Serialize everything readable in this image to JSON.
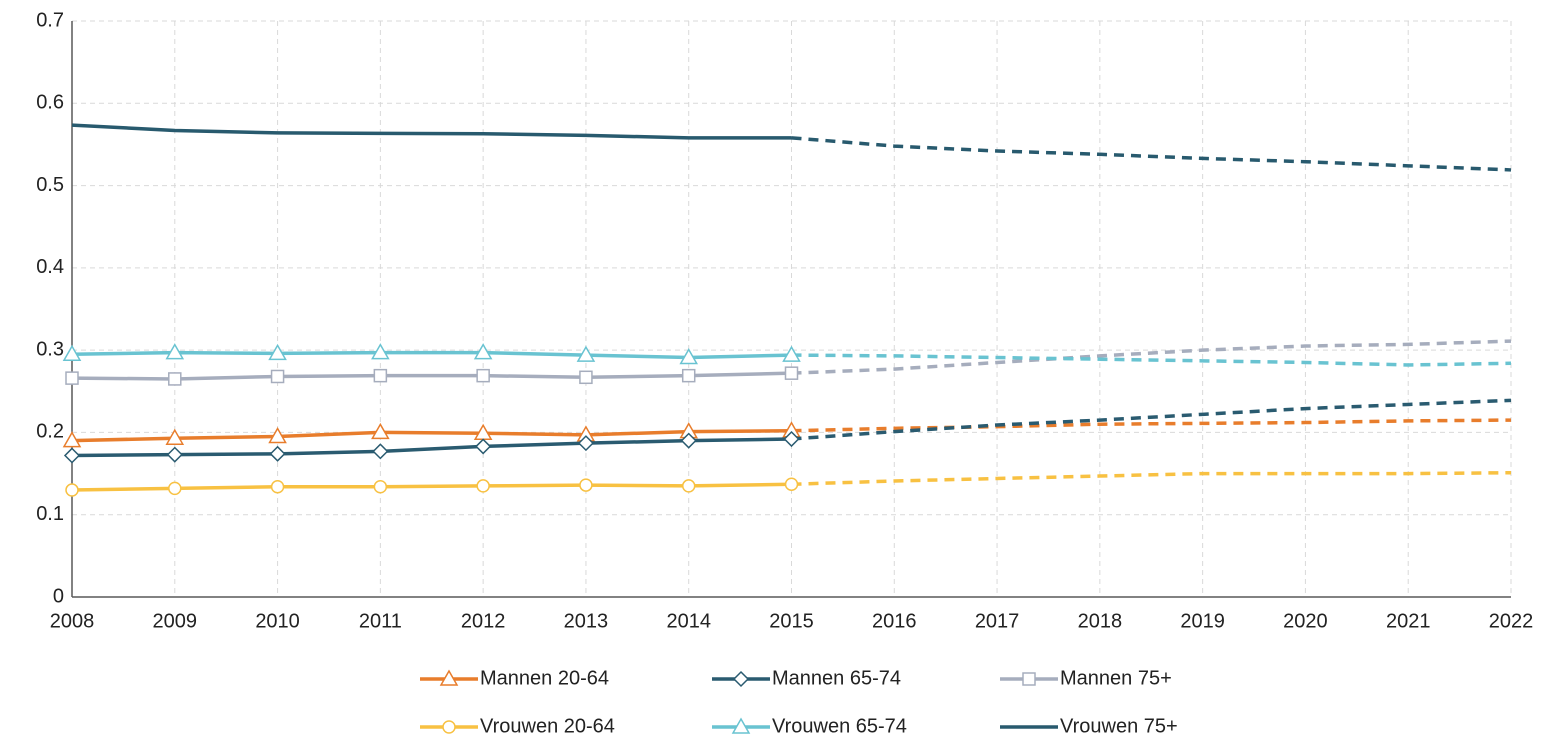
{
  "chart_data": {
    "type": "line",
    "x": [
      2008,
      2009,
      2010,
      2011,
      2012,
      2013,
      2014,
      2015,
      2016,
      2017,
      2018,
      2019,
      2020,
      2021,
      2022
    ],
    "xlim": [
      2008,
      2022
    ],
    "xticks": [
      2008,
      2009,
      2010,
      2011,
      2012,
      2013,
      2014,
      2015,
      2016,
      2017,
      2018,
      2019,
      2020,
      2021,
      2022
    ],
    "ylim": [
      0,
      0.7
    ],
    "yticks": [
      0,
      0.1,
      0.2,
      0.3,
      0.4,
      0.5,
      0.6,
      0.7
    ],
    "grid": true,
    "dashed_from": 2015,
    "legend": "bottom",
    "series": [
      {
        "name": "Mannen 20-64",
        "color": "#e87d2c",
        "marker": "triangle",
        "values": [
          0.19,
          0.193,
          0.195,
          0.2,
          0.199,
          0.197,
          0.201,
          0.202,
          0.205,
          0.207,
          0.21,
          0.211,
          0.212,
          0.214,
          0.215
        ]
      },
      {
        "name": "Mannen 65-74",
        "color": "#2a5b70",
        "marker": "diamond",
        "values": [
          0.172,
          0.173,
          0.174,
          0.177,
          0.183,
          0.187,
          0.19,
          0.192,
          0.201,
          0.209,
          0.215,
          0.222,
          0.229,
          0.234,
          0.239
        ]
      },
      {
        "name": "Mannen 75+",
        "color": "#a6adbd",
        "marker": "square",
        "values": [
          0.266,
          0.265,
          0.268,
          0.269,
          0.269,
          0.267,
          0.269,
          0.272,
          0.277,
          0.285,
          0.293,
          0.3,
          0.305,
          0.307,
          0.311
        ]
      },
      {
        "name": "Vrouwen 20-64",
        "color": "#f8c142",
        "marker": "circle",
        "values": [
          0.13,
          0.132,
          0.134,
          0.134,
          0.135,
          0.136,
          0.135,
          0.137,
          0.141,
          0.144,
          0.147,
          0.15,
          0.15,
          0.15,
          0.151
        ]
      },
      {
        "name": "Vrouwen 65-74",
        "color": "#69c3d1",
        "marker": "triangle",
        "values": [
          0.295,
          0.297,
          0.296,
          0.297,
          0.297,
          0.294,
          0.291,
          0.294,
          0.293,
          0.291,
          0.289,
          0.287,
          0.285,
          0.282,
          0.284
        ]
      },
      {
        "name": "Vrouwen 75+",
        "color": "#285a6e",
        "marker": "none",
        "values": [
          0.5735,
          0.567,
          0.564,
          0.5635,
          0.563,
          0.561,
          0.558,
          0.558,
          0.548,
          0.542,
          0.538,
          0.533,
          0.529,
          0.524,
          0.519
        ]
      }
    ]
  }
}
